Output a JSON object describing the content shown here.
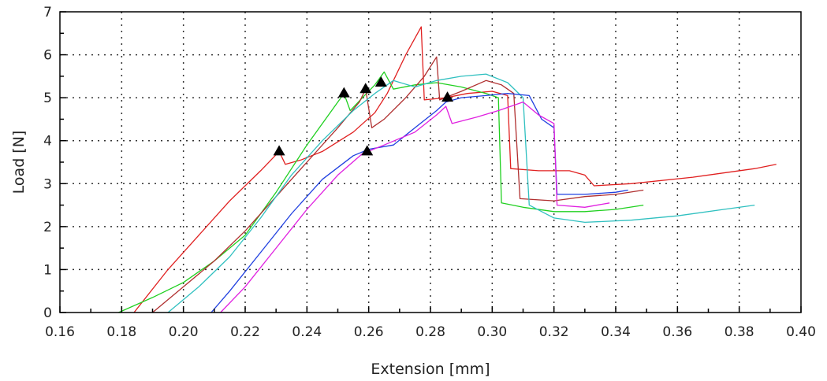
{
  "chart_data": {
    "type": "line",
    "title": "",
    "xlabel": "Extension [mm]",
    "ylabel": "Load [N]",
    "xlim": [
      0.16,
      0.4
    ],
    "ylim": [
      0,
      7
    ],
    "x_ticks": [
      "0.16",
      "0.18",
      "0.20",
      "0.22",
      "0.24",
      "0.26",
      "0.28",
      "0.30",
      "0.32",
      "0.34",
      "0.36",
      "0.38",
      "0.40"
    ],
    "y_ticks": [
      "0",
      "1",
      "2",
      "3",
      "4",
      "5",
      "6",
      "7"
    ],
    "grid": true,
    "legend": "none",
    "series": [
      {
        "color": "#e02020",
        "points": [
          [
            0.184,
            0
          ],
          [
            0.195,
            1
          ],
          [
            0.205,
            1.8
          ],
          [
            0.215,
            2.6
          ],
          [
            0.225,
            3.3
          ],
          [
            0.231,
            3.75
          ],
          [
            0.233,
            3.45
          ],
          [
            0.238,
            3.55
          ],
          [
            0.245,
            3.75
          ],
          [
            0.255,
            4.2
          ],
          [
            0.262,
            4.65
          ],
          [
            0.266,
            5.1
          ],
          [
            0.272,
            6.0
          ],
          [
            0.277,
            6.65
          ],
          [
            0.278,
            4.95
          ],
          [
            0.285,
            5.0
          ],
          [
            0.292,
            5.1
          ],
          [
            0.3,
            5.15
          ],
          [
            0.305,
            5.05
          ],
          [
            0.306,
            3.35
          ],
          [
            0.315,
            3.3
          ],
          [
            0.325,
            3.3
          ],
          [
            0.33,
            3.2
          ],
          [
            0.333,
            2.95
          ],
          [
            0.345,
            3.0
          ],
          [
            0.365,
            3.15
          ],
          [
            0.385,
            3.35
          ],
          [
            0.392,
            3.45
          ]
        ]
      },
      {
        "color": "#20d020",
        "points": [
          [
            0.179,
            0
          ],
          [
            0.19,
            0.35
          ],
          [
            0.2,
            0.7
          ],
          [
            0.21,
            1.2
          ],
          [
            0.22,
            1.8
          ],
          [
            0.23,
            2.8
          ],
          [
            0.24,
            3.9
          ],
          [
            0.248,
            4.7
          ],
          [
            0.252,
            5.1
          ],
          [
            0.254,
            4.7
          ],
          [
            0.258,
            5.0
          ],
          [
            0.262,
            5.3
          ],
          [
            0.265,
            5.6
          ],
          [
            0.268,
            5.2
          ],
          [
            0.275,
            5.3
          ],
          [
            0.282,
            5.35
          ],
          [
            0.29,
            5.25
          ],
          [
            0.298,
            5.1
          ],
          [
            0.302,
            5.0
          ],
          [
            0.303,
            2.55
          ],
          [
            0.31,
            2.45
          ],
          [
            0.32,
            2.35
          ],
          [
            0.33,
            2.35
          ],
          [
            0.34,
            2.4
          ],
          [
            0.349,
            2.5
          ]
        ]
      },
      {
        "color": "#b03030",
        "points": [
          [
            0.19,
            0
          ],
          [
            0.2,
            0.6
          ],
          [
            0.21,
            1.2
          ],
          [
            0.22,
            1.9
          ],
          [
            0.23,
            2.7
          ],
          [
            0.24,
            3.5
          ],
          [
            0.25,
            4.3
          ],
          [
            0.257,
            4.9
          ],
          [
            0.259,
            5.2
          ],
          [
            0.261,
            4.3
          ],
          [
            0.265,
            4.5
          ],
          [
            0.272,
            5.0
          ],
          [
            0.278,
            5.5
          ],
          [
            0.282,
            5.95
          ],
          [
            0.283,
            4.95
          ],
          [
            0.29,
            5.15
          ],
          [
            0.298,
            5.4
          ],
          [
            0.303,
            5.3
          ],
          [
            0.307,
            5.1
          ],
          [
            0.309,
            2.65
          ],
          [
            0.32,
            2.6
          ],
          [
            0.33,
            2.7
          ],
          [
            0.34,
            2.75
          ],
          [
            0.349,
            2.85
          ]
        ]
      },
      {
        "color": "#30c0c0",
        "points": [
          [
            0.195,
            0
          ],
          [
            0.205,
            0.6
          ],
          [
            0.215,
            1.3
          ],
          [
            0.225,
            2.2
          ],
          [
            0.235,
            3.2
          ],
          [
            0.245,
            4.0
          ],
          [
            0.255,
            4.7
          ],
          [
            0.262,
            5.1
          ],
          [
            0.268,
            5.4
          ],
          [
            0.275,
            5.25
          ],
          [
            0.282,
            5.4
          ],
          [
            0.29,
            5.5
          ],
          [
            0.298,
            5.55
          ],
          [
            0.305,
            5.35
          ],
          [
            0.31,
            5.0
          ],
          [
            0.312,
            2.5
          ],
          [
            0.32,
            2.2
          ],
          [
            0.33,
            2.1
          ],
          [
            0.345,
            2.15
          ],
          [
            0.36,
            2.25
          ],
          [
            0.375,
            2.4
          ],
          [
            0.385,
            2.5
          ]
        ]
      },
      {
        "color": "#2040e0",
        "points": [
          [
            0.209,
            0
          ],
          [
            0.215,
            0.5
          ],
          [
            0.225,
            1.4
          ],
          [
            0.235,
            2.3
          ],
          [
            0.245,
            3.1
          ],
          [
            0.255,
            3.65
          ],
          [
            0.26,
            3.8
          ],
          [
            0.268,
            3.9
          ],
          [
            0.275,
            4.3
          ],
          [
            0.282,
            4.7
          ],
          [
            0.285,
            4.9
          ],
          [
            0.29,
            5.0
          ],
          [
            0.298,
            5.05
          ],
          [
            0.305,
            5.1
          ],
          [
            0.312,
            5.05
          ],
          [
            0.316,
            4.5
          ],
          [
            0.32,
            4.3
          ],
          [
            0.321,
            2.75
          ],
          [
            0.33,
            2.75
          ],
          [
            0.34,
            2.8
          ],
          [
            0.344,
            2.85
          ]
        ]
      },
      {
        "color": "#e020e0",
        "points": [
          [
            0.212,
            0
          ],
          [
            0.22,
            0.6
          ],
          [
            0.23,
            1.5
          ],
          [
            0.24,
            2.4
          ],
          [
            0.25,
            3.2
          ],
          [
            0.258,
            3.7
          ],
          [
            0.265,
            3.9
          ],
          [
            0.275,
            4.2
          ],
          [
            0.282,
            4.6
          ],
          [
            0.285,
            4.8
          ],
          [
            0.287,
            4.4
          ],
          [
            0.295,
            4.55
          ],
          [
            0.302,
            4.7
          ],
          [
            0.31,
            4.9
          ],
          [
            0.315,
            4.6
          ],
          [
            0.32,
            4.4
          ],
          [
            0.321,
            2.5
          ],
          [
            0.33,
            2.45
          ],
          [
            0.338,
            2.55
          ]
        ]
      }
    ],
    "markers": [
      [
        0.231,
        3.75
      ],
      [
        0.252,
        5.1
      ],
      [
        0.259,
        5.2
      ],
      [
        0.264,
        5.35
      ],
      [
        0.2595,
        3.75
      ],
      [
        0.2855,
        5.0
      ]
    ]
  }
}
